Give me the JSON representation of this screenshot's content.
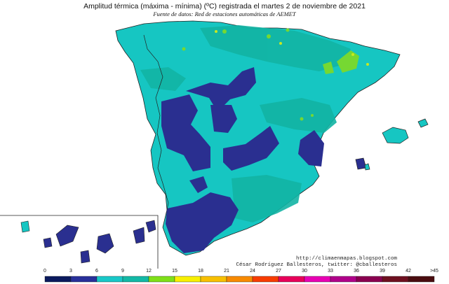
{
  "title": "Amplitud térmica (máxima - mínima) (ºC) registrada el martes 2 de noviembre de 2021",
  "subtitle": "Fuente de datos: Red de estaciones automáticas de AEMET",
  "credits": {
    "url": "http://climaenmapas.blogspot.com",
    "author": "César Rodríguez Ballesteros, twitter: @cballesteros"
  },
  "legend": {
    "labels": [
      "0",
      "3",
      "6",
      "9",
      "12",
      "15",
      "18",
      "21",
      "24",
      "27",
      "30",
      "33",
      "36",
      "39",
      "42",
      ">45"
    ],
    "colors": [
      "#0b1a5e",
      "#28309a",
      "#18c8c8",
      "#12b9a6",
      "#7fe018",
      "#f8f000",
      "#f8c000",
      "#f88a00",
      "#f83c00",
      "#e8005a",
      "#e800b4",
      "#b0008a",
      "#8a0050",
      "#6e1020",
      "#4a0c10"
    ]
  },
  "map": {
    "ocean_color": "#ffffff",
    "land_base_color": "#16c6c2",
    "region_colors": {
      "dark_blue": "#2a2f90",
      "teal": "#12b4a4",
      "green": "#76d832",
      "yellow_green": "#b8e830"
    }
  }
}
